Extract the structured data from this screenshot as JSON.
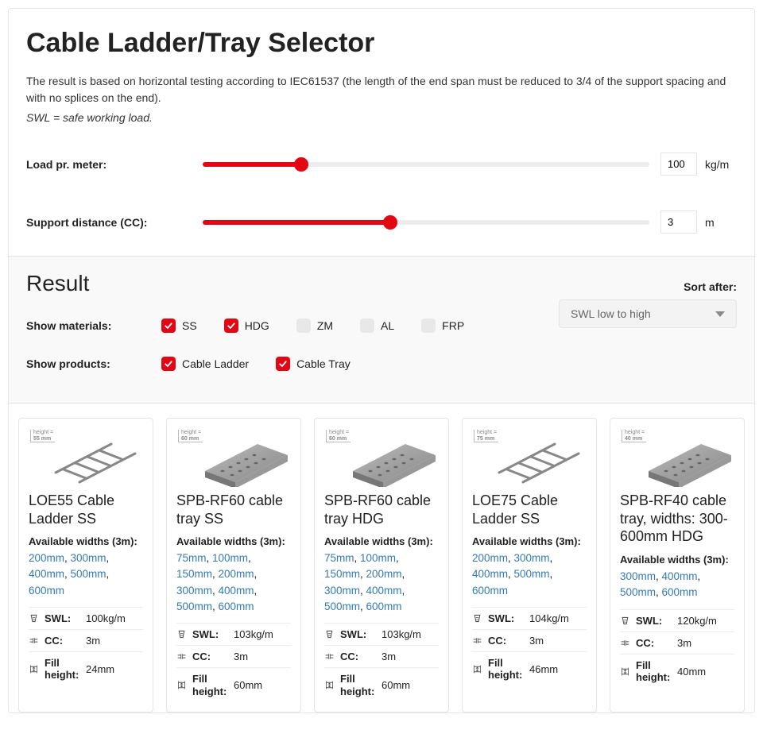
{
  "header": {
    "title": "Cable Ladder/Tray Selector",
    "intro": "The result is based on horizontal testing according to IEC61537 (the length of the end span must be reduced to 3/4 of the support spacing and with no splices on the end).",
    "swl_note": "SWL = safe working load."
  },
  "sliders": {
    "load": {
      "label": "Load pr. meter:",
      "value": "100",
      "unit": "kg/m",
      "fill_pct": 22,
      "accent": "#e30613"
    },
    "support": {
      "label": "Support distance (CC):",
      "value": "3",
      "unit": "m",
      "fill_pct": 42,
      "accent": "#e30613"
    }
  },
  "filters": {
    "result_title": "Result",
    "sort_label": "Sort after:",
    "sort_selected": "SWL low to high",
    "materials_label": "Show materials:",
    "materials": [
      {
        "label": "SS",
        "checked": true
      },
      {
        "label": "HDG",
        "checked": true
      },
      {
        "label": "ZM",
        "checked": false
      },
      {
        "label": "AL",
        "checked": false
      },
      {
        "label": "FRP",
        "checked": false
      }
    ],
    "products_label": "Show products:",
    "products": [
      {
        "label": "Cable Ladder",
        "checked": true
      },
      {
        "label": "Cable Tray",
        "checked": true
      }
    ]
  },
  "cards": [
    {
      "kind": "ladder",
      "height_mm": "55 mm",
      "title": "LOE55 Cable Ladder SS",
      "avail_label": "Available widths (3m):",
      "widths": [
        "200mm",
        "300mm",
        "400mm",
        "500mm",
        "600mm"
      ],
      "swl_label": "SWL:",
      "swl_val": "100kg/m",
      "cc_label": "CC:",
      "cc_val": "3m",
      "fill_label": "Fill height:",
      "fill_val": "24mm"
    },
    {
      "kind": "tray",
      "height_mm": "60 mm",
      "title": "SPB-RF60 cable tray SS",
      "avail_label": "Available widths (3m):",
      "widths": [
        "75mm",
        "100mm",
        "150mm",
        "200mm",
        "300mm",
        "400mm",
        "500mm",
        "600mm"
      ],
      "swl_label": "SWL:",
      "swl_val": "103kg/m",
      "cc_label": "CC:",
      "cc_val": "3m",
      "fill_label": "Fill height:",
      "fill_val": "60mm"
    },
    {
      "kind": "tray",
      "height_mm": "60 mm",
      "title": "SPB-RF60 cable tray HDG",
      "avail_label": "Available widths (3m):",
      "widths": [
        "75mm",
        "100mm",
        "150mm",
        "200mm",
        "300mm",
        "400mm",
        "500mm",
        "600mm"
      ],
      "swl_label": "SWL:",
      "swl_val": "103kg/m",
      "cc_label": "CC:",
      "cc_val": "3m",
      "fill_label": "Fill height:",
      "fill_val": "60mm"
    },
    {
      "kind": "ladder",
      "height_mm": "75 mm",
      "title": "LOE75 Cable Ladder SS",
      "avail_label": "Available widths (3m):",
      "widths": [
        "200mm",
        "300mm",
        "400mm",
        "500mm",
        "600mm"
      ],
      "swl_label": "SWL:",
      "swl_val": "104kg/m",
      "cc_label": "CC:",
      "cc_val": "3m",
      "fill_label": "Fill height:",
      "fill_val": "46mm"
    },
    {
      "kind": "tray",
      "height_mm": "40 mm",
      "title": "SPB-RF40 cable tray, widths: 300-600mm HDG",
      "tall_title": true,
      "avail_label": "Available widths (3m):",
      "widths": [
        "300mm",
        "400mm",
        "500mm",
        "600mm"
      ],
      "swl_label": "SWL:",
      "swl_val": "120kg/m",
      "cc_label": "CC:",
      "cc_val": "3m",
      "fill_label": "Fill height:",
      "fill_val": "40mm"
    }
  ]
}
